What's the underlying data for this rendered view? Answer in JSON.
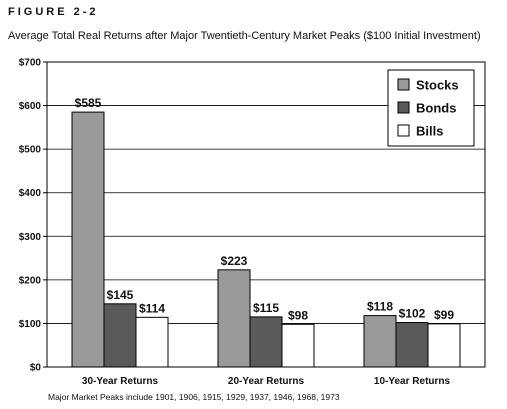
{
  "figure_label": "FIGURE 2-2",
  "subtitle": "Average Total Real Returns after Major Twentieth-Century Market Peaks ($100 Initial Investment)",
  "footnote": "Major Market Peaks include  1901, 1906, 1915, 1929, 1937, 1946, 1968, 1973",
  "chart_data": {
    "type": "bar",
    "title": "Average Total Real Returns after Major Twentieth-Century Market Peaks ($100 Initial Investment)",
    "xlabel": "",
    "ylabel": "",
    "categories": [
      "30-Year Returns",
      "20-Year Returns",
      "10-Year Returns"
    ],
    "series": [
      {
        "name": "Stocks",
        "values": [
          585,
          223,
          118
        ],
        "labels": [
          "$585",
          "$223",
          "$118"
        ],
        "color": "#9a9a9a"
      },
      {
        "name": "Bonds",
        "values": [
          145,
          115,
          102
        ],
        "labels": [
          "$145",
          "$115",
          "$102"
        ],
        "color": "#5a5a5a"
      },
      {
        "name": "Bills",
        "values": [
          114,
          98,
          99
        ],
        "labels": [
          "$114",
          "$98",
          "$99"
        ],
        "color": "#ffffff"
      }
    ],
    "ylim": [
      0,
      700
    ],
    "yticks": [
      0,
      100,
      200,
      300,
      400,
      500,
      600,
      700
    ],
    "ytick_labels": [
      "$0",
      "$100",
      "$200",
      "$300",
      "$400",
      "$500",
      "$600",
      "$700"
    ],
    "grid": true,
    "legend_position": "top-right"
  }
}
